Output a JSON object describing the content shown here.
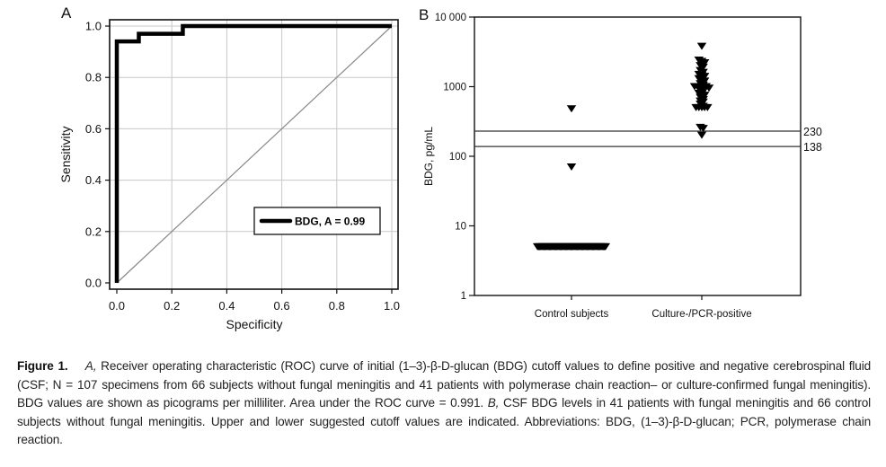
{
  "chart_data": [
    {
      "type": "line",
      "panel_label": "A",
      "title": "",
      "xlabel": "Specificity",
      "ylabel": "Sensitivity",
      "xlim": [
        0,
        1
      ],
      "ylim": [
        0,
        1
      ],
      "grid": true,
      "x_ticks": [
        "0.0",
        "0.2",
        "0.4",
        "0.6",
        "0.8",
        "1.0"
      ],
      "y_ticks": [
        "0.0",
        "0.2",
        "0.4",
        "0.6",
        "0.8",
        "1.0"
      ],
      "x_tick_values": [
        0,
        0.2,
        0.4,
        0.6,
        0.8,
        1.0
      ],
      "y_tick_values": [
        0,
        0.2,
        0.4,
        0.6,
        0.8,
        1.0
      ],
      "legend": {
        "label": "BDG, A = 0.99",
        "placement": "lower-right"
      },
      "series": [
        {
          "name": "BDG, A = 0.99",
          "x": [
            0,
            0,
            0.08,
            0.08,
            0.24,
            0.24,
            1.0
          ],
          "y": [
            0,
            0.94,
            0.94,
            0.97,
            0.97,
            1.0,
            1.0
          ]
        },
        {
          "name": "reference diagonal",
          "x": [
            0,
            1
          ],
          "y": [
            0,
            1
          ]
        }
      ]
    },
    {
      "type": "scatter",
      "panel_label": "B",
      "title": "",
      "xlabel": "",
      "ylabel": "BDG, pg/mL",
      "yscale": "log",
      "ylim": [
        1,
        10000
      ],
      "y_ticks": [
        "1",
        "10",
        "100",
        "1000",
        "10 000"
      ],
      "y_tick_values": [
        1,
        10,
        100,
        1000,
        10000
      ],
      "categories": [
        "Control subjects",
        "Culture-/PCR-positive"
      ],
      "grid": false,
      "reference_lines": [
        {
          "value": 230,
          "label": "230"
        },
        {
          "value": 138,
          "label": "138"
        }
      ],
      "series": [
        {
          "name": "Control subjects",
          "values": [
            480,
            70,
            5,
            5,
            5,
            5,
            5,
            5,
            5,
            5,
            5,
            5,
            5,
            5,
            5,
            5,
            5,
            5,
            5,
            5,
            5,
            5,
            5,
            5,
            5,
            5,
            5,
            5,
            5,
            5,
            5,
            5,
            5,
            5,
            5,
            5,
            5,
            5,
            5,
            5,
            5,
            5,
            5,
            5,
            5,
            5,
            5,
            5,
            5,
            5,
            5,
            5,
            5,
            5,
            5,
            5,
            5,
            5,
            5,
            5,
            5,
            5,
            5,
            5,
            5,
            5
          ]
        },
        {
          "name": "Culture-/PCR-positive",
          "values": [
            3800,
            2400,
            2300,
            2200,
            2000,
            1900,
            1700,
            1600,
            1500,
            1450,
            1400,
            1300,
            1250,
            1200,
            1100,
            1050,
            1000,
            1000,
            1000,
            1000,
            1000,
            950,
            900,
            850,
            800,
            780,
            750,
            700,
            650,
            620,
            600,
            560,
            520,
            500,
            500,
            500,
            500,
            500,
            260,
            250,
            200
          ]
        }
      ]
    }
  ],
  "caption": {
    "label": "Figure 1.",
    "part_a_label": "A,",
    "part_a_text": " Receiver operating characteristic (ROC) curve of initial (1–3)-β-D-glucan (BDG) cutoff values to define positive and negative cerebrospinal fluid (CSF; N = 107 specimens from 66 subjects without fungal meningitis and 41 patients with polymerase chain reaction– or culture-confirmed fungal meningitis). BDG values are shown as picograms per milliliter. Area under the ROC curve = 0.991. ",
    "part_b_label": "B,",
    "part_b_text": " CSF BDG levels in 41 patients with fungal meningitis and 66 control subjects without fungal meningitis. Upper and lower suggested cutoff values are indicated. Abbreviations: BDG, (1–3)-β-D-glucan; PCR, polymerase chain reaction."
  }
}
